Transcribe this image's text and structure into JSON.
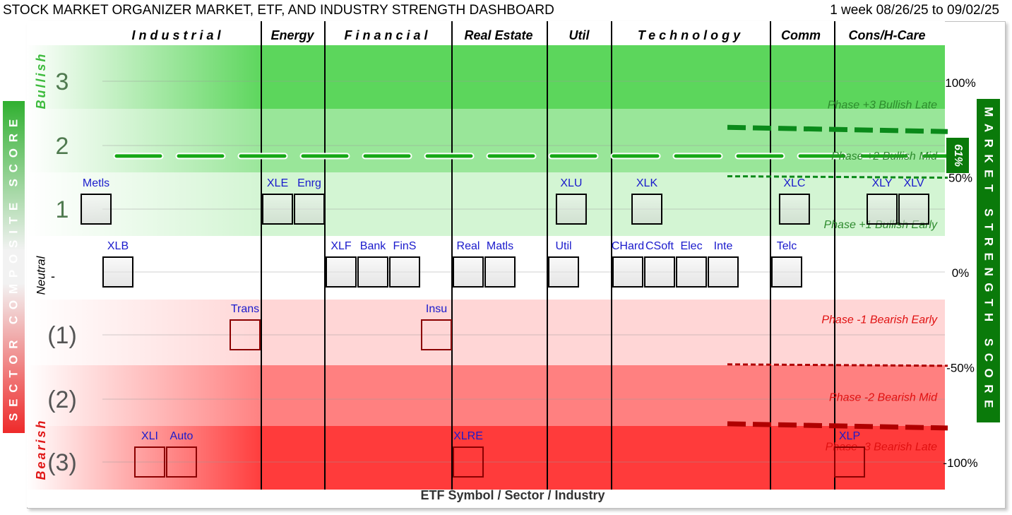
{
  "header": {
    "title": "STOCK MARKET ORGANIZER MARKET, ETF, AND INDUSTRY STRENGTH DASHBOARD",
    "date_range": "1 week 08/26/25 to 09/02/25"
  },
  "chart_data": {
    "type": "scatter",
    "title": "STOCK MARKET ORGANIZER MARKET, ETF, AND INDUSTRY STRENGTH DASHBOARD",
    "xlabel": "ETF Symbol / Sector / Industry",
    "left_axis": {
      "title": "SECTOR COMPOSITE SCORE",
      "ticks": [
        "3",
        "2",
        "1",
        "-",
        "(1)",
        "(2)",
        "(3)"
      ],
      "zone_words": {
        "bullish": "Bullish",
        "neutral": "Neutral",
        "bearish": "Bearish"
      }
    },
    "right_axis": {
      "title": "MARKET STRENGTH SCORE",
      "ticks": [
        {
          "label": "100%",
          "value": 100
        },
        {
          "label": "50%",
          "value": 50
        },
        {
          "label": "0%",
          "value": 0
        },
        {
          "label": "-50%",
          "value": -50
        },
        {
          "label": "-100%",
          "value": -100
        }
      ],
      "ylim": [
        -100,
        100
      ]
    },
    "market_strength": {
      "value": 61,
      "label": "61%"
    },
    "threshold_lines": [
      {
        "value": 75,
        "color": "#0a8a1a",
        "style": "thick-dash"
      },
      {
        "value": 50,
        "color": "#0a8a1a",
        "style": "thin-dash"
      },
      {
        "value": -49,
        "color": "#b00000",
        "style": "thin-dash"
      },
      {
        "value": -81,
        "color": "#b00000",
        "style": "thick-dash"
      }
    ],
    "phases": [
      {
        "label": "Phase +3 Bullish Late",
        "value": 88,
        "color": "#2e8b2e"
      },
      {
        "label": "Phase +2 Bullish Mid",
        "value": 61,
        "color": "#2e8b2e"
      },
      {
        "label": "Phase +1 Bullish Early",
        "value": 25,
        "color": "#2e8b2e"
      },
      {
        "label": "Phase -1 Bearish Early",
        "value": -25,
        "color": "#e01010"
      },
      {
        "label": "Phase -2 Bearish Mid",
        "value": -66,
        "color": "#e01010"
      },
      {
        "label": "Phase -3 Bearish Late",
        "value": -92,
        "color": "#e01010"
      }
    ],
    "sectors": [
      {
        "name": "Industrial",
        "spaced": true
      },
      {
        "name": "Energy",
        "spaced": false
      },
      {
        "name": "Financial",
        "spaced": true
      },
      {
        "name": "Real Estate",
        "spaced": false
      },
      {
        "name": "Util",
        "spaced": false
      },
      {
        "name": "Technology",
        "spaced": true
      },
      {
        "name": "Comm",
        "spaced": false
      },
      {
        "name": "Cons/H-Care",
        "spaced": false
      }
    ],
    "points": [
      {
        "symbol": "XLB",
        "sector": "Industrial",
        "score": 0
      },
      {
        "symbol": "XLI",
        "sector": "Industrial",
        "score": -3
      },
      {
        "symbol": "Auto",
        "sector": "Industrial",
        "score": -3
      },
      {
        "symbol": "Metls",
        "sector": "Industrial",
        "score": 1
      },
      {
        "symbol": "Trans",
        "sector": "Industrial",
        "score": -1
      },
      {
        "symbol": "XLE",
        "sector": "Energy",
        "score": 1
      },
      {
        "symbol": "Enrg",
        "sector": "Energy",
        "score": 1
      },
      {
        "symbol": "XLF",
        "sector": "Financial",
        "score": 0
      },
      {
        "symbol": "Bank",
        "sector": "Financial",
        "score": 0
      },
      {
        "symbol": "FinS",
        "sector": "Financial",
        "score": 0
      },
      {
        "symbol": "Insu",
        "sector": "Financial",
        "score": -1
      },
      {
        "symbol": "XLRE",
        "sector": "Real Estate",
        "score": -3
      },
      {
        "symbol": "Real",
        "sector": "Real Estate",
        "score": 0
      },
      {
        "symbol": "Matls",
        "sector": "Real Estate",
        "score": 0
      },
      {
        "symbol": "XLU",
        "sector": "Util",
        "score": 1
      },
      {
        "symbol": "Util",
        "sector": "Util",
        "score": 0
      },
      {
        "symbol": "XLK",
        "sector": "Technology",
        "score": 1
      },
      {
        "symbol": "CHard",
        "sector": "Technology",
        "score": 0
      },
      {
        "symbol": "CSoft",
        "sector": "Technology",
        "score": 0
      },
      {
        "symbol": "Elec",
        "sector": "Technology",
        "score": 0
      },
      {
        "symbol": "Inte",
        "sector": "Technology",
        "score": 0
      },
      {
        "symbol": "XLC",
        "sector": "Comm",
        "score": 1
      },
      {
        "symbol": "Telc",
        "sector": "Comm",
        "score": 0
      },
      {
        "symbol": "XLP",
        "sector": "Cons/H-Care",
        "score": -3
      },
      {
        "symbol": "XLY",
        "sector": "Cons/H-Care",
        "score": 1
      },
      {
        "symbol": "XLV",
        "sector": "Cons/H-Care",
        "score": 1
      }
    ],
    "colors": {
      "bull_strong": "#5cd65c",
      "bull_mid": "#99e699",
      "bull_light": "#d3f5d3",
      "bear_light": "#ffd6d6",
      "bear_mid": "#ff8080",
      "bear_strong": "#ff3b3b",
      "strength_green": "#0a7a0a",
      "symbol_blue": "#1a1acc"
    }
  }
}
